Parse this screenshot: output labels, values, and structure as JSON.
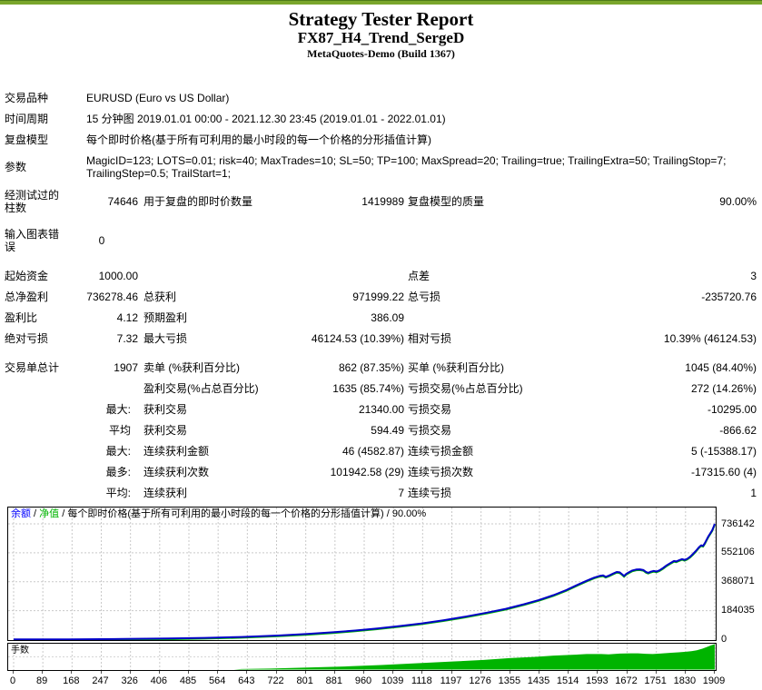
{
  "header": {
    "title": "Strategy Tester Report",
    "ea_name": "FX87_H4_Trend_SergeD",
    "server": "MetaQuotes-Demo (Build 1367)"
  },
  "accent": {
    "topbar_green": "#7aa62c"
  },
  "report": {
    "rows": [
      {
        "type": "wide",
        "label": "交易品种",
        "value": "EURUSD (Euro vs US Dollar)"
      },
      {
        "type": "wide",
        "label": "时间周期",
        "value": "15 分钟图 2019.01.01 00:00 - 2021.12.30 23:45 (2019.01.01 - 2022.01.01)"
      },
      {
        "type": "wide",
        "label": "复盘模型",
        "value": "每个即时价格(基于所有可利用的最小时段的每一个价格的分形插值计算)"
      },
      {
        "type": "wide",
        "label": "参数",
        "value": "MagicID=123; LOTS=0.01; risk=40; MaxTrades=10; SL=50; TP=100; MaxSpread=20; Trailing=true; TrailingExtra=50; TrailingStop=7; TrailingStep=0.5; TrailStart=1;",
        "tall": true
      },
      {
        "type": "std",
        "c1": "经测试过的柱数",
        "v1": "74646",
        "c3": "用于复盘的即时价数量",
        "v2": "1419989",
        "c5": "复盘模型的质量",
        "v3": "90.00%",
        "tall": true
      },
      {
        "type": "std",
        "c1": "输入图表错误",
        "v1": "0",
        "c3": "",
        "v2": "",
        "c5": "",
        "v3": "",
        "tall": true,
        "gap": "gap5",
        "v1center": true
      },
      {
        "type": "std",
        "c1": "起始资金",
        "v1": "1000.00",
        "c3": "",
        "v2": "",
        "c5": "点差",
        "v3": "3",
        "gap": "gap8"
      },
      {
        "type": "std",
        "c1": "总净盈利",
        "v1": "736278.46",
        "c3": "总获利",
        "v2": "971999.22",
        "c5": "总亏损",
        "v3": "-235720.76"
      },
      {
        "type": "std",
        "c1": "盈利比",
        "v1": "4.12",
        "c3": "预期盈利",
        "v2": "386.09",
        "c5": "",
        "v3": ""
      },
      {
        "type": "std",
        "c1": "绝对亏损",
        "v1": "7.32",
        "c3": "最大亏损",
        "v2": "46124.53 (10.39%)",
        "c5": "相对亏损",
        "v3": "10.39% (46124.53)"
      },
      {
        "type": "std",
        "c1": "交易单总计",
        "v1": "1907",
        "c3": "卖单 (%获利百分比)",
        "v2": "862 (87.35%)",
        "c5": "买单 (%获利百分比)",
        "v3": "1045 (84.40%)",
        "gap": "gap9"
      },
      {
        "type": "sub",
        "pre": "",
        "c3": "盈利交易(%占总百分比)",
        "v2": "1635 (85.74%)",
        "c5": "亏损交易(%占总百分比)",
        "v3": "272 (14.26%)"
      },
      {
        "type": "sub",
        "pre": "最大:",
        "c3": "获利交易",
        "v2": "21340.00",
        "c5": "亏损交易",
        "v3": "-10295.00"
      },
      {
        "type": "sub",
        "pre": "平均",
        "c3": "获利交易",
        "v2": "594.49",
        "c5": "亏损交易",
        "v3": "-866.62"
      },
      {
        "type": "sub",
        "pre": "最大:",
        "c3": "连续获利金额",
        "v2": "46 (4582.87)",
        "c5": "连续亏损金额",
        "v3": "5 (-15388.17)"
      },
      {
        "type": "sub",
        "pre": "最多:",
        "c3": "连续获利次数",
        "v2": "101942.58 (29)",
        "c5": "连续亏损次数",
        "v3": "-17315.60 (4)"
      },
      {
        "type": "sub",
        "pre": "平均:",
        "c3": "连续获利",
        "v2": "7",
        "c5": "连续亏损",
        "v3": "1"
      }
    ]
  },
  "legend": {
    "separator": " / ",
    "items": [
      {
        "text": "余额",
        "color": "#0000ff"
      },
      {
        "text": "净值",
        "color": "#00b400"
      },
      {
        "text": "每个即时价格(基于所有可利用的最小时段的每一个价格的分形插值计算)",
        "color": "#000000"
      },
      {
        "text": "90.00%",
        "color": "#000000"
      }
    ]
  },
  "lots_tag": "手数",
  "chart_data": {
    "type": "line",
    "title": "余额 / 净值 / 每个即时价格(基于所有可利用的最小时段的每一个价格的分形插值计算) / 90.00%",
    "x_range": [
      0,
      1909
    ],
    "y_range": [
      0,
      736142
    ],
    "grid": true,
    "legend_position": "top-left-inside",
    "y_ticks": [
      "736142",
      "552106",
      "368071",
      "184035",
      "0"
    ],
    "y_tick_values": [
      736142,
      552106,
      368071,
      184035,
      0
    ],
    "x_ticks": [
      "0",
      "89",
      "168",
      "247",
      "326",
      "406",
      "485",
      "564",
      "643",
      "722",
      "801",
      "881",
      "960",
      "1039",
      "1118",
      "1197",
      "1276",
      "1355",
      "1435",
      "1514",
      "1593",
      "1672",
      "1751",
      "1830",
      "1909"
    ],
    "series": [
      {
        "name": "余额",
        "color": "#0000c8",
        "points": [
          [
            0,
            1000
          ],
          [
            150,
            2000
          ],
          [
            300,
            4000
          ],
          [
            420,
            7000
          ],
          [
            520,
            11000
          ],
          [
            620,
            17000
          ],
          [
            720,
            26000
          ],
          [
            800,
            36000
          ],
          [
            870,
            47000
          ],
          [
            930,
            58000
          ],
          [
            990,
            71000
          ],
          [
            1050,
            86000
          ],
          [
            1110,
            103000
          ],
          [
            1170,
            123000
          ],
          [
            1230,
            146000
          ],
          [
            1290,
            172000
          ],
          [
            1340,
            196000
          ],
          [
            1390,
            225000
          ],
          [
            1430,
            252000
          ],
          [
            1470,
            283000
          ],
          [
            1505,
            315000
          ],
          [
            1535,
            348000
          ],
          [
            1560,
            374000
          ],
          [
            1580,
            394000
          ],
          [
            1595,
            405000
          ],
          [
            1605,
            408000
          ],
          [
            1612,
            399000
          ],
          [
            1622,
            408000
          ],
          [
            1632,
            420000
          ],
          [
            1642,
            430000
          ],
          [
            1650,
            428000
          ],
          [
            1657,
            415000
          ],
          [
            1662,
            405000
          ],
          [
            1668,
            418000
          ],
          [
            1675,
            428000
          ],
          [
            1685,
            440000
          ],
          [
            1695,
            446000
          ],
          [
            1705,
            447000
          ],
          [
            1715,
            442000
          ],
          [
            1722,
            430000
          ],
          [
            1728,
            425000
          ],
          [
            1735,
            432000
          ],
          [
            1743,
            437000
          ],
          [
            1750,
            433000
          ],
          [
            1758,
            440000
          ],
          [
            1768,
            455000
          ],
          [
            1778,
            472000
          ],
          [
            1788,
            487000
          ],
          [
            1798,
            500000
          ],
          [
            1804,
            497000
          ],
          [
            1812,
            505000
          ],
          [
            1820,
            512000
          ],
          [
            1827,
            507000
          ],
          [
            1834,
            514000
          ],
          [
            1842,
            527000
          ],
          [
            1850,
            545000
          ],
          [
            1858,
            565000
          ],
          [
            1866,
            588000
          ],
          [
            1872,
            600000
          ],
          [
            1877,
            596000
          ],
          [
            1882,
            614000
          ],
          [
            1887,
            636000
          ],
          [
            1892,
            658000
          ],
          [
            1897,
            676000
          ],
          [
            1902,
            696000
          ],
          [
            1906,
            718000
          ],
          [
            1909,
            736278
          ]
        ]
      },
      {
        "name": "净值",
        "color": "#00b400",
        "overlaps": "余额"
      }
    ],
    "lots_chart": {
      "label": "手数",
      "fill_color": "#00b400",
      "relative_points": [
        [
          0,
          0
        ],
        [
          600,
          0
        ],
        [
          620,
          0.02
        ],
        [
          700,
          0.04
        ],
        [
          800,
          0.08
        ],
        [
          900,
          0.12
        ],
        [
          1000,
          0.18
        ],
        [
          1100,
          0.25
        ],
        [
          1200,
          0.32
        ],
        [
          1280,
          0.38
        ],
        [
          1350,
          0.45
        ],
        [
          1420,
          0.5
        ],
        [
          1470,
          0.55
        ],
        [
          1520,
          0.58
        ],
        [
          1560,
          0.61
        ],
        [
          1600,
          0.61
        ],
        [
          1620,
          0.6
        ],
        [
          1650,
          0.63
        ],
        [
          1680,
          0.64
        ],
        [
          1700,
          0.64
        ],
        [
          1720,
          0.62
        ],
        [
          1740,
          0.61
        ],
        [
          1760,
          0.63
        ],
        [
          1790,
          0.66
        ],
        [
          1810,
          0.68
        ],
        [
          1830,
          0.7
        ],
        [
          1845,
          0.72
        ],
        [
          1860,
          0.76
        ],
        [
          1875,
          0.82
        ],
        [
          1890,
          0.9
        ],
        [
          1900,
          0.96
        ],
        [
          1909,
          1.0
        ]
      ]
    }
  }
}
